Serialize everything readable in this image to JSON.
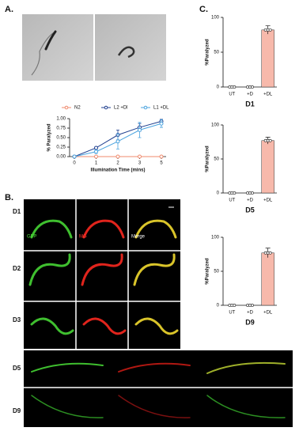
{
  "panels": {
    "a": "A.",
    "b": "B.",
    "c": "C."
  },
  "image_labels": {
    "rows": [
      "D1",
      "D2",
      "D3",
      "D5",
      "D9"
    ],
    "channels": [
      "GFP",
      "MG",
      "Merge"
    ]
  },
  "chart_data": [
    {
      "type": "line",
      "x_label": "Illumination Time (mins)",
      "y_label": "% Paralyzed",
      "categories": [
        "0",
        "1",
        "2",
        "3",
        "5"
      ],
      "ylim": [
        0,
        1
      ],
      "yticks": [
        {
          "value": 0,
          "label": "0.00"
        },
        {
          "value": 0.25,
          "label": "0.25"
        },
        {
          "value": 0.5,
          "label": "0.50"
        },
        {
          "value": 0.75,
          "label": "0.75"
        },
        {
          "value": 1,
          "label": "1.00"
        }
      ],
      "series": [
        {
          "name": "N2",
          "color": "#f08a6c",
          "values": [
            0,
            0,
            0,
            0,
            0
          ],
          "errors": [
            0,
            0,
            0,
            0,
            0
          ]
        },
        {
          "name": "L2 +Dl",
          "color": "#1f3f8f",
          "values": [
            0,
            0.23,
            0.57,
            0.77,
            0.93
          ],
          "errors": [
            0,
            0.03,
            0.13,
            0.1,
            0.05
          ]
        },
        {
          "name": "L1 +DL",
          "color": "#4aa3df",
          "values": [
            0,
            0.13,
            0.4,
            0.7,
            0.87
          ],
          "errors": [
            0,
            0.05,
            0.2,
            0.2,
            0.1
          ]
        }
      ]
    },
    {
      "type": "bar",
      "title": "D1",
      "y_label": "%Paralyzed",
      "categories": [
        "UT",
        "+D",
        "+DL"
      ],
      "color": "#f7b9ab",
      "values": [
        0,
        0,
        82
      ],
      "errors": [
        0,
        0,
        6
      ],
      "ylim": [
        0,
        100
      ],
      "yticks": [
        0,
        50,
        100
      ]
    },
    {
      "type": "bar",
      "title": "D5",
      "y_label": "%Paralyzed",
      "categories": [
        "UT",
        "+D",
        "+DL"
      ],
      "color": "#f7b9ab",
      "values": [
        0,
        0,
        77
      ],
      "errors": [
        0,
        0,
        5
      ],
      "ylim": [
        0,
        100
      ],
      "yticks": [
        0,
        50,
        100
      ]
    },
    {
      "type": "bar",
      "title": "D9",
      "y_label": "%Paralyzed",
      "categories": [
        "UT",
        "+D",
        "+DL"
      ],
      "color": "#f7b9ab",
      "values": [
        0,
        0,
        77
      ],
      "errors": [
        0,
        0,
        7
      ],
      "ylim": [
        0,
        100
      ],
      "yticks": [
        0,
        50,
        100
      ]
    }
  ]
}
